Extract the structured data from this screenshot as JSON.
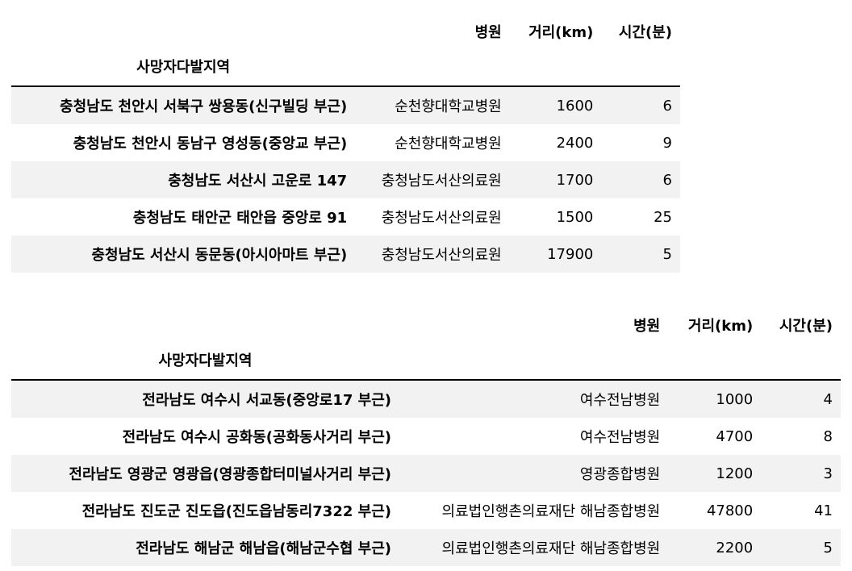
{
  "tables": [
    {
      "index_name": "사망자다발지역",
      "columns": [
        "병원",
        "거리(km)",
        "시간(분)"
      ],
      "rows": [
        {
          "index": "충청남도 천안시 서북구 쌍용동(신구빌딩 부근)",
          "hospital": "순천향대학교병원",
          "distance": "1600",
          "time": "6"
        },
        {
          "index": "충청남도 천안시 동남구 영성동(중앙교 부근)",
          "hospital": "순천향대학교병원",
          "distance": "2400",
          "time": "9"
        },
        {
          "index": "충청남도 서산시 고운로 147",
          "hospital": "충청남도서산의료원",
          "distance": "1700",
          "time": "6"
        },
        {
          "index": "충청남도 태안군 태안읍 중앙로 91",
          "hospital": "충청남도서산의료원",
          "distance": "1500",
          "time": "25"
        },
        {
          "index": "충청남도 서산시 동문동(아시아마트 부근)",
          "hospital": "충청남도서산의료원",
          "distance": "17900",
          "time": "5"
        }
      ]
    },
    {
      "index_name": "사망자다발지역",
      "columns": [
        "병원",
        "거리(km)",
        "시간(분)"
      ],
      "rows": [
        {
          "index": "전라남도 여수시 서교동(중앙로17 부근)",
          "hospital": "여수전남병원",
          "distance": "1000",
          "time": "4"
        },
        {
          "index": "전라남도 여수시 공화동(공화동사거리 부근)",
          "hospital": "여수전남병원",
          "distance": "4700",
          "time": "8"
        },
        {
          "index": "전라남도 영광군 영광읍(영광종합터미널사거리 부근)",
          "hospital": "영광종합병원",
          "distance": "1200",
          "time": "3"
        },
        {
          "index": "전라남도 진도군 진도읍(진도읍남동리7322 부근)",
          "hospital": "의료법인행촌의료재단 해남종합병원",
          "distance": "47800",
          "time": "41"
        },
        {
          "index": "전라남도 해남군 해남읍(해남군수협 부근)",
          "hospital": "의료법인행촌의료재단 해남종합병원",
          "distance": "2200",
          "time": "5"
        }
      ]
    }
  ]
}
